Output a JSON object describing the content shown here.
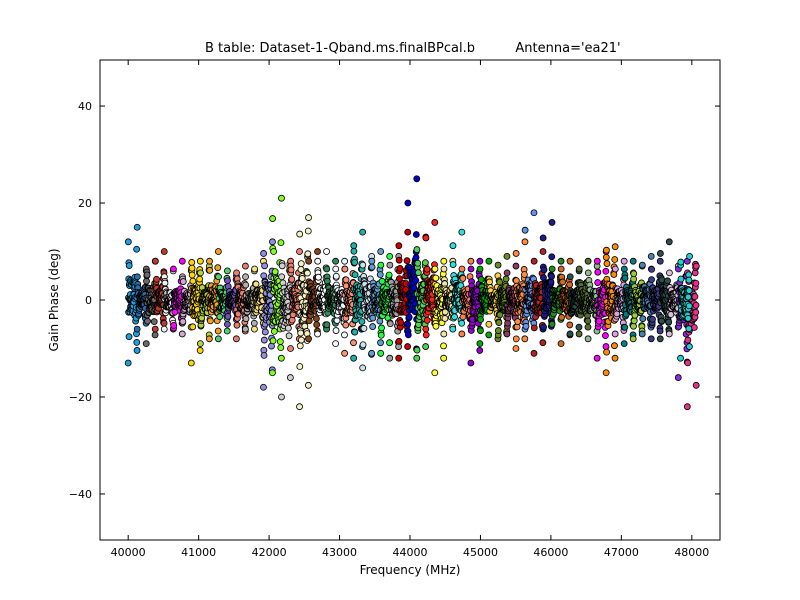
{
  "chart_data": {
    "type": "scatter",
    "title": "B table: Dataset-1-Qband.ms.finalBPcal.b",
    "antenna_label": "Antenna='ea21'",
    "xlabel": "Frequency (MHz)",
    "ylabel": "Gain Phase (deg)",
    "xlim": [
      39600,
      48400
    ],
    "ylim": [
      -49.5,
      49.5
    ],
    "x_ticks": [
      40000,
      41000,
      42000,
      43000,
      44000,
      45000,
      46000,
      47000,
      48000
    ],
    "y_ticks": [
      -40,
      -20,
      0,
      20,
      40
    ],
    "y_tick_labels": [
      "−40",
      "−20",
      "0",
      "20",
      "40"
    ],
    "grid": false,
    "legend": "none",
    "marker": "circle",
    "marker_edge_color": "#000000",
    "channels_per_spw": 64,
    "spw_bandwidth_mhz": 128,
    "series": [
      {
        "start": 40000,
        "color": "#1ea0e0",
        "ymin": -13,
        "ymax": 15
      },
      {
        "start": 40128,
        "color": "#2c6db0",
        "ymin": -6,
        "ymax": 6
      },
      {
        "start": 40256,
        "color": "#6a6a6a",
        "ymin": -9,
        "ymax": 8
      },
      {
        "start": 40384,
        "color": "#c0392b",
        "ymin": -6,
        "ymax": 10
      },
      {
        "start": 40512,
        "color": "#f0f0f0",
        "ymin": -6,
        "ymax": 6
      },
      {
        "start": 40640,
        "color": "#ff00ff",
        "ymin": -6,
        "ymax": 8
      },
      {
        "start": 40768,
        "color": "#d0a8d0",
        "ymin": -7,
        "ymax": 6
      },
      {
        "start": 40896,
        "color": "#ffd700",
        "ymin": -13,
        "ymax": 8
      },
      {
        "start": 41024,
        "color": "#b5d33a",
        "ymin": -9,
        "ymax": 7
      },
      {
        "start": 41152,
        "color": "#f4a020",
        "ymin": -8,
        "ymax": 10
      },
      {
        "start": 41280,
        "color": "#50d070",
        "ymin": -8,
        "ymax": 6
      },
      {
        "start": 41408,
        "color": "#7050c0",
        "ymin": -5,
        "ymax": 5
      },
      {
        "start": 41536,
        "color": "#e88070",
        "ymin": -8,
        "ymax": 7
      },
      {
        "start": 41664,
        "color": "#b0b0b0",
        "ymin": -6,
        "ymax": 6
      },
      {
        "start": 41792,
        "color": "#f8e080",
        "ymin": -6,
        "ymax": 8
      },
      {
        "start": 41920,
        "color": "#9090e0",
        "ymin": -18,
        "ymax": 12
      },
      {
        "start": 42048,
        "color": "#80ff20",
        "ymin": -15,
        "ymax": 21
      },
      {
        "start": 42176,
        "color": "#d0d0d0",
        "ymin": -20,
        "ymax": 6
      },
      {
        "start": 42304,
        "color": "#f08070",
        "ymin": -10,
        "ymax": 10
      },
      {
        "start": 42432,
        "color": "#f5f0c0",
        "ymin": -22,
        "ymax": 17
      },
      {
        "start": 42560,
        "color": "#8b4513",
        "ymin": -8,
        "ymax": 10
      },
      {
        "start": 42688,
        "color": "#ffffff",
        "ymin": -7,
        "ymax": 10
      },
      {
        "start": 42816,
        "color": "#2e8b57",
        "ymin": -6,
        "ymax": 8
      },
      {
        "start": 42944,
        "color": "#f0f8ff",
        "ymin": -9,
        "ymax": 8
      },
      {
        "start": 43072,
        "color": "#ff9070",
        "ymin": -11,
        "ymax": 8
      },
      {
        "start": 43200,
        "color": "#20b2aa",
        "ymin": -12,
        "ymax": 14
      },
      {
        "start": 43328,
        "color": "#d0e0f0",
        "ymin": -14,
        "ymax": 9
      },
      {
        "start": 43456,
        "color": "#60a0d0",
        "ymin": -11,
        "ymax": 10
      },
      {
        "start": 43584,
        "color": "#20ff40",
        "ymin": -11,
        "ymax": 9
      },
      {
        "start": 43712,
        "color": "#a0a0a0",
        "ymin": -12,
        "ymax": 9
      },
      {
        "start": 43840,
        "color": "#cc0000",
        "ymin": -12,
        "ymax": 14
      },
      {
        "start": 43968,
        "color": "#0000cc",
        "ymin": -5,
        "ymax": 25
      },
      {
        "start": 44096,
        "color": "#50d050",
        "ymin": -12,
        "ymax": 13
      },
      {
        "start": 44224,
        "color": "#ff2020",
        "ymin": -6,
        "ymax": 16
      },
      {
        "start": 44352,
        "color": "#ffff30",
        "ymin": -15,
        "ymax": 8
      },
      {
        "start": 44480,
        "color": "#f0e6a0",
        "ymin": -7,
        "ymax": 8
      },
      {
        "start": 44608,
        "color": "#30e0e0",
        "ymin": -6,
        "ymax": 14
      },
      {
        "start": 44736,
        "color": "#ff7f50",
        "ymin": -7,
        "ymax": 8
      },
      {
        "start": 44864,
        "color": "#9400d3",
        "ymin": -13,
        "ymax": 8
      },
      {
        "start": 44992,
        "color": "#00aa00",
        "ymin": -9,
        "ymax": 8
      },
      {
        "start": 45120,
        "color": "#ffd040",
        "ymin": -5,
        "ymax": 5
      },
      {
        "start": 45248,
        "color": "#6b8e23",
        "ymin": -8,
        "ymax": 9
      },
      {
        "start": 45376,
        "color": "#8b3a62",
        "ymin": -7,
        "ymax": 7
      },
      {
        "start": 45504,
        "color": "#ff8c40",
        "ymin": -10,
        "ymax": 12
      },
      {
        "start": 45632,
        "color": "#6495ed",
        "ymin": -6,
        "ymax": 18
      },
      {
        "start": 45760,
        "color": "#b22222",
        "ymin": -11,
        "ymax": 10
      },
      {
        "start": 45888,
        "color": "#1a1a8a",
        "ymin": -6,
        "ymax": 16
      },
      {
        "start": 46016,
        "color": "#228b22",
        "ymin": -5,
        "ymax": 8
      },
      {
        "start": 46144,
        "color": "#d2691e",
        "ymin": -9,
        "ymax": 8
      },
      {
        "start": 46272,
        "color": "#2f4f4f",
        "ymin": -7,
        "ymax": 6
      },
      {
        "start": 46400,
        "color": "#556b2f",
        "ymin": -7,
        "ymax": 8
      },
      {
        "start": 46528,
        "color": "#8fbc8f",
        "ymin": -8,
        "ymax": 7
      },
      {
        "start": 46656,
        "color": "#ff00ff",
        "ymin": -12,
        "ymax": 10
      },
      {
        "start": 46784,
        "color": "#ff8c00",
        "ymin": -15,
        "ymax": 11
      },
      {
        "start": 46912,
        "color": "#dda0dd",
        "ymin": -7,
        "ymax": 8
      },
      {
        "start": 47040,
        "color": "#008080",
        "ymin": -9,
        "ymax": 8
      },
      {
        "start": 47168,
        "color": "#9acd32",
        "ymin": -8,
        "ymax": 7
      },
      {
        "start": 47296,
        "color": "#4682b4",
        "ymin": -7,
        "ymax": 9
      },
      {
        "start": 47424,
        "color": "#3b3b8a",
        "ymin": -8,
        "ymax": 8
      },
      {
        "start": 47552,
        "color": "#2f4f4f",
        "ymin": -8,
        "ymax": 12
      },
      {
        "start": 47680,
        "color": "#d8bfd8",
        "ymin": -7,
        "ymax": 7
      },
      {
        "start": 47808,
        "color": "#8a2be2",
        "ymin": -16,
        "ymax": 8
      },
      {
        "start": 47936,
        "color": "#e8308a",
        "ymin": -22,
        "ymax": 7
      }
    ],
    "extra_series": [
      {
        "start": 47840,
        "color": "#20d0d0",
        "ymin": -12,
        "ymax": 9
      }
    ]
  }
}
